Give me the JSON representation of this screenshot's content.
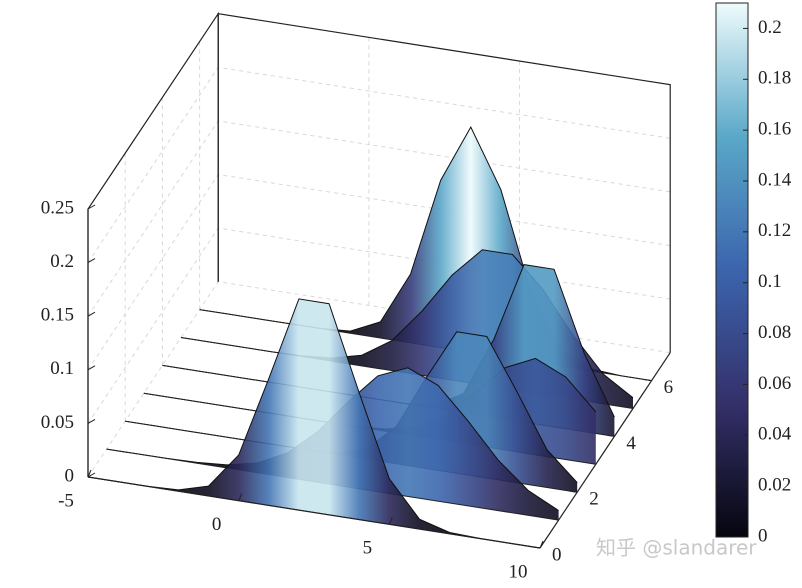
{
  "chart_data": {
    "type": "waterfall",
    "x": [
      -5,
      -4,
      -3,
      -2,
      -1,
      0,
      1,
      2,
      3,
      4,
      5,
      6,
      7,
      8,
      9,
      10
    ],
    "series": [
      {
        "y": 0,
        "values": [
          0,
          0,
          0.0001,
          0.0012,
          0.0092,
          0.0426,
          0.1183,
          0.197,
          0.197,
          0.1183,
          0.0426,
          0.0092,
          0.0012,
          0.0001,
          0,
          0
        ]
      },
      {
        "y": 1,
        "values": [
          0,
          0,
          0.0002,
          0.0008,
          0.0029,
          0.0091,
          0.023,
          0.047,
          0.079,
          0.108,
          0.12,
          0.108,
          0.079,
          0.047,
          0.023,
          0.009
        ]
      },
      {
        "y": 2,
        "values": [
          0,
          0,
          0,
          0,
          0,
          0,
          0.0002,
          0.0016,
          0.0092,
          0.035,
          0.085,
          0.132,
          0.132,
          0.085,
          0.035,
          0.009
        ]
      },
      {
        "y": 3,
        "values": [
          0,
          0,
          0,
          0,
          0,
          0,
          0,
          0.0003,
          0.002,
          0.008,
          0.022,
          0.049,
          0.077,
          0.09,
          0.077,
          0.049
        ]
      },
      {
        "y": 4,
        "values": [
          0,
          0,
          0,
          0,
          0,
          0,
          0,
          0,
          0.0001,
          0.002,
          0.018,
          0.073,
          0.147,
          0.147,
          0.073,
          0.018
        ]
      },
      {
        "y": 5,
        "values": [
          0,
          0,
          0,
          0,
          0.0007,
          0.003,
          0.01,
          0.028,
          0.06,
          0.098,
          0.126,
          0.126,
          0.098,
          0.06,
          0.028,
          0.01
        ]
      },
      {
        "y": 6,
        "values": [
          0,
          0,
          0,
          0,
          0.0001,
          0.002,
          0.015,
          0.064,
          0.156,
          0.21,
          0.156,
          0.064,
          0.015,
          0.002,
          0,
          0
        ]
      }
    ],
    "xlim": [
      -5,
      10
    ],
    "xticks": [
      -5,
      0,
      5,
      10
    ],
    "ylim": [
      0,
      7
    ],
    "yticks": [
      0,
      2,
      4,
      6
    ],
    "zlim": [
      0,
      0.25
    ],
    "zticks": [
      0,
      0.05,
      0.1,
      0.15,
      0.2,
      0.25
    ],
    "grid": true,
    "colormap": [
      "#06060f",
      "#34306a",
      "#3b64ad",
      "#5aa8c8",
      "#eefbfc"
    ],
    "clim": [
      0,
      0.21
    ],
    "cticks": [
      0,
      0.02,
      0.04,
      0.06,
      0.08,
      0.1,
      0.12,
      0.14,
      0.16,
      0.18,
      0.2
    ],
    "watermark": "知乎 @slandarer"
  }
}
